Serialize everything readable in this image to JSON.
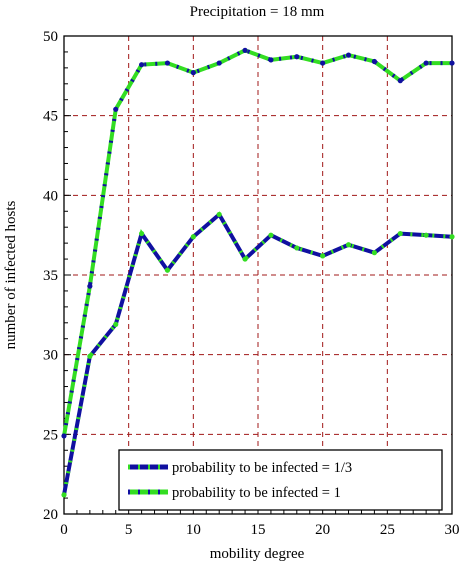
{
  "chart_data": {
    "type": "line",
    "title": "Precipitation = 18 mm",
    "xlabel": "mobility degree",
    "ylabel": "number of infected hosts",
    "xlim": [
      0,
      30
    ],
    "ylim": [
      20,
      50
    ],
    "x_ticks": [
      0,
      5,
      10,
      15,
      20,
      25,
      30
    ],
    "y_ticks": [
      20,
      25,
      30,
      35,
      40,
      45,
      50
    ],
    "grid": true,
    "legend_position": "bottom-right",
    "x": [
      0,
      2,
      4,
      6,
      8,
      10,
      12,
      14,
      16,
      18,
      20,
      22,
      24,
      26,
      28,
      30
    ],
    "series": [
      {
        "name": "probability to be infected = 1/3",
        "line_color": "#1010a0",
        "marker_color": "#33dd22",
        "values": [
          21.2,
          29.9,
          31.9,
          37.6,
          35.3,
          37.4,
          38.8,
          36.0,
          37.5,
          36.7,
          36.2,
          36.9,
          36.4,
          37.6,
          37.5,
          37.4
        ]
      },
      {
        "name": "probability to be infected = 1",
        "line_color": "#33dd22",
        "marker_color": "#1010a0",
        "values": [
          24.9,
          34.3,
          45.4,
          48.2,
          48.3,
          47.7,
          48.3,
          49.1,
          48.5,
          48.7,
          48.3,
          48.8,
          48.4,
          47.2,
          48.3,
          48.3
        ]
      }
    ]
  }
}
